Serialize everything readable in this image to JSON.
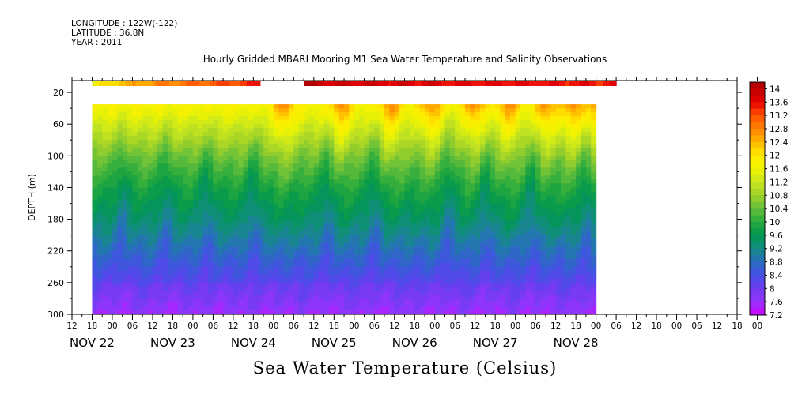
{
  "header": {
    "longitude": "LONGITUDE : 122W(-122)",
    "latitude": "LATITUDE : 36.8N",
    "year": "YEAR : 2011"
  },
  "chart_data": {
    "type": "heatmap",
    "title": "Hourly Gridded MBARI Mooring M1 Sea Water Temperature and Salinity Observations",
    "bottom_title": "Sea Water Temperature (Celsius)",
    "ylabel": "DEPTH (m)",
    "y_reversed": true,
    "ylim": [
      5,
      300
    ],
    "y_ticks": [
      20,
      60,
      100,
      140,
      180,
      220,
      260,
      300
    ],
    "x_range_hours": [
      -6,
      192
    ],
    "x_hour_ticks": [
      {
        "h": -6,
        "label": "12"
      },
      {
        "h": 0,
        "label": "18"
      },
      {
        "h": 6,
        "label": "00"
      },
      {
        "h": 12,
        "label": "06"
      },
      {
        "h": 18,
        "label": "12"
      },
      {
        "h": 24,
        "label": "18"
      },
      {
        "h": 30,
        "label": "00"
      },
      {
        "h": 36,
        "label": "06"
      },
      {
        "h": 42,
        "label": "12"
      },
      {
        "h": 48,
        "label": "18"
      },
      {
        "h": 54,
        "label": "00"
      },
      {
        "h": 60,
        "label": "06"
      },
      {
        "h": 66,
        "label": "12"
      },
      {
        "h": 72,
        "label": "18"
      },
      {
        "h": 78,
        "label": "00"
      },
      {
        "h": 84,
        "label": "06"
      },
      {
        "h": 90,
        "label": "12"
      },
      {
        "h": 96,
        "label": "18"
      },
      {
        "h": 102,
        "label": "00"
      },
      {
        "h": 108,
        "label": "06"
      },
      {
        "h": 114,
        "label": "12"
      },
      {
        "h": 120,
        "label": "18"
      },
      {
        "h": 126,
        "label": "00"
      },
      {
        "h": 132,
        "label": "06"
      },
      {
        "h": 138,
        "label": "12"
      },
      {
        "h": 144,
        "label": "18"
      },
      {
        "h": 150,
        "label": "00"
      },
      {
        "h": 156,
        "label": "06"
      },
      {
        "h": 162,
        "label": "12"
      },
      {
        "h": 168,
        "label": "18"
      },
      {
        "h": 174,
        "label": "00"
      },
      {
        "h": 180,
        "label": "06"
      },
      {
        "h": 186,
        "label": "12"
      },
      {
        "h": 192,
        "label": "18"
      },
      {
        "h": 198,
        "label": "00"
      }
    ],
    "x_day_labels": [
      {
        "h": 0,
        "label": "NOV 22"
      },
      {
        "h": 24,
        "label": "NOV 23"
      },
      {
        "h": 48,
        "label": "NOV 24"
      },
      {
        "h": 72,
        "label": "NOV 25"
      },
      {
        "h": 96,
        "label": "NOV 26"
      },
      {
        "h": 120,
        "label": "NOV 27"
      },
      {
        "h": 144,
        "label": "NOV 28"
      }
    ],
    "data_time_range_hours": [
      0,
      150
    ],
    "surface_band": {
      "depth_range": [
        5,
        12
      ],
      "segments": [
        {
          "h_start": 0,
          "h_end": 50,
          "t_start": 11.6,
          "t_end": 13.4
        },
        {
          "h_start": 63,
          "h_end": 156,
          "t_start": 14.0,
          "t_end": 13.5
        }
      ]
    },
    "depth_profile": {
      "depths": [
        35,
        60,
        100,
        140,
        180,
        220,
        260,
        300
      ],
      "temps": [
        11.8,
        11.3,
        10.5,
        9.9,
        9.4,
        8.8,
        8.2,
        7.7
      ]
    },
    "warm_events_hours": [
      57,
      74,
      89,
      101,
      114,
      124,
      135,
      143,
      150
    ],
    "cold_events_hours": [
      9,
      22,
      34,
      48,
      70,
      84,
      106,
      117,
      131,
      147
    ],
    "colorbar": {
      "min": 7.2,
      "max": 14.2,
      "step": 0.2,
      "labels": [
        "14",
        "13.6",
        "13.2",
        "12.8",
        "12.4",
        "12",
        "11.6",
        "11.2",
        "10.8",
        "10.4",
        "10",
        "9.6",
        "9.2",
        "8.8",
        "8.4",
        "8",
        "7.6",
        "7.2"
      ]
    }
  }
}
